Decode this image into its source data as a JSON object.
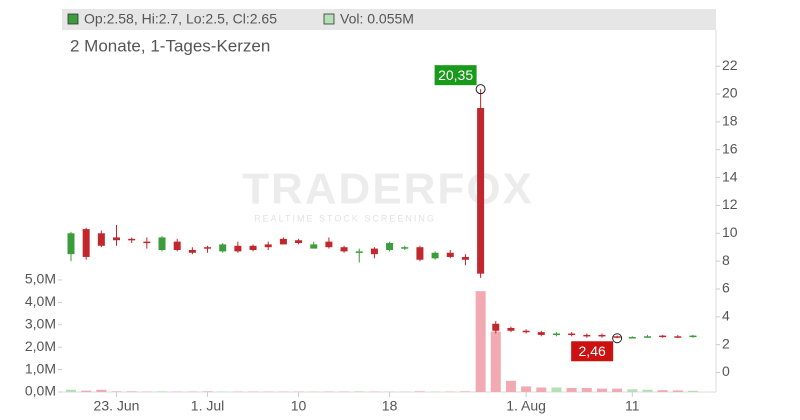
{
  "chart_data": {
    "type": "candlestick",
    "title": "2 Monate, 1-Tages-Kerzen",
    "legend_ohlc": "Op:2.58, Hi:2.7, Lo:2.5, Cl:2.65",
    "legend_volume": "Vol: 0.055M",
    "watermark": "TRADERFOX",
    "watermark_subtitle": "REALTIME STOCK SCREENING",
    "up_color": "#3a9d3a",
    "down_color": "#c1272d",
    "volume_up_color": "#b5dfb5",
    "volume_down_color": "#f1aab1",
    "categories": [
      null,
      null,
      null,
      "23. Jun",
      null,
      null,
      null,
      null,
      null,
      "1. Jul",
      null,
      null,
      null,
      null,
      null,
      "10",
      null,
      null,
      null,
      null,
      null,
      "18",
      null,
      null,
      null,
      null,
      null,
      null,
      null,
      null,
      "1. Aug",
      null,
      null,
      null,
      null,
      null,
      null,
      "11",
      null,
      null,
      null,
      null
    ],
    "open": [
      8.5,
      10.3,
      10.0,
      9.7,
      9.6,
      9.4,
      8.8,
      9.4,
      8.8,
      9.0,
      8.7,
      9.1,
      9.1,
      9.2,
      9.6,
      9.5,
      8.9,
      9.4,
      9.0,
      8.6,
      8.9,
      8.8,
      8.9,
      9.0,
      8.2,
      8.6,
      8.3,
      19.0,
      3.5,
      3.2,
      3.0,
      2.9,
      2.7,
      2.8,
      2.7,
      2.7,
      2.6,
      2.45,
      2.5,
      2.65,
      2.6,
      2.58
    ],
    "high": [
      10.1,
      10.4,
      10.2,
      10.6,
      9.7,
      9.7,
      9.8,
      9.6,
      9.0,
      9.1,
      9.3,
      9.4,
      9.2,
      9.4,
      9.7,
      9.6,
      9.4,
      9.7,
      9.1,
      8.9,
      9.0,
      9.4,
      9.1,
      9.1,
      8.7,
      8.8,
      8.5,
      20.35,
      3.7,
      3.3,
      3.1,
      3.0,
      2.9,
      2.9,
      2.8,
      2.8,
      2.65,
      2.6,
      2.7,
      2.7,
      2.7,
      2.7
    ],
    "low": [
      8.0,
      8.1,
      9.0,
      9.1,
      9.3,
      8.9,
      8.7,
      8.7,
      8.5,
      8.6,
      8.6,
      8.6,
      8.7,
      8.8,
      9.2,
      9.2,
      8.9,
      8.9,
      8.6,
      7.9,
      8.2,
      8.7,
      8.8,
      8.0,
      8.1,
      8.2,
      7.7,
      6.8,
      2.8,
      2.9,
      2.8,
      2.6,
      2.6,
      2.6,
      2.5,
      2.5,
      2.46,
      2.5,
      2.5,
      2.5,
      2.5,
      2.5
    ],
    "close": [
      10.0,
      8.3,
      9.1,
      9.5,
      9.5,
      9.3,
      9.7,
      8.8,
      8.6,
      8.9,
      9.2,
      8.7,
      8.8,
      9.0,
      9.2,
      9.3,
      9.2,
      9.0,
      8.7,
      8.7,
      8.5,
      9.3,
      9.0,
      8.1,
      8.6,
      8.3,
      8.1,
      7.1,
      3.0,
      3.0,
      2.9,
      2.7,
      2.8,
      2.7,
      2.6,
      2.6,
      2.5,
      2.55,
      2.6,
      2.55,
      2.5,
      2.65
    ],
    "volume": [
      0.1,
      0.06,
      0.1,
      0.03,
      0.03,
      0.02,
      0.03,
      0.02,
      0.02,
      0.03,
      0.02,
      0.02,
      0.02,
      0.02,
      0.02,
      0.02,
      0.02,
      0.02,
      0.02,
      0.03,
      0.02,
      0.02,
      0.02,
      0.03,
      0.02,
      0.02,
      0.03,
      4.5,
      2.7,
      0.5,
      0.25,
      0.2,
      0.2,
      0.18,
      0.18,
      0.15,
      0.15,
      0.12,
      0.1,
      0.08,
      0.07,
      0.055
    ],
    "ylim": [
      -1.4,
      24.6
    ],
    "yticks": [
      0,
      2,
      4,
      6,
      8,
      10,
      12,
      14,
      16,
      18,
      20,
      22
    ],
    "y2lim": [
      0,
      5.4
    ],
    "y2ticks": [
      {
        "value": 0,
        "label": "0,0M"
      },
      {
        "value": 1,
        "label": "1,0M"
      },
      {
        "value": 2,
        "label": "2,0M"
      },
      {
        "value": 3,
        "label": "3,0M"
      },
      {
        "value": 4,
        "label": "4,0M"
      },
      {
        "value": 5,
        "label": "5,0M"
      }
    ],
    "annotations": [
      {
        "field": "high",
        "value": 20.35,
        "label": "20,35",
        "color": "#1a9a1a"
      },
      {
        "field": "low",
        "value": 2.46,
        "label": "2,46",
        "color": "#cc1111"
      }
    ]
  }
}
